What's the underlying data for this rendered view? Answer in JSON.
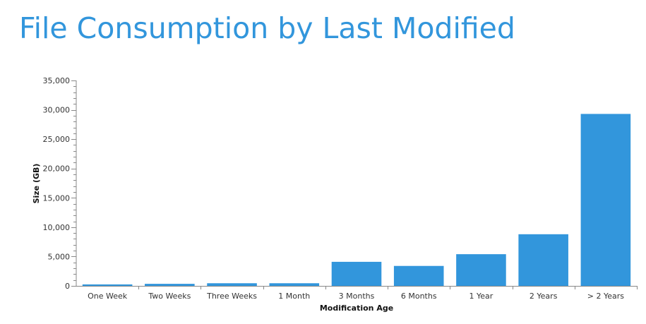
{
  "title": "File Consumption by Last Modified",
  "chart_data": {
    "type": "bar",
    "title": "File Consumption by Last Modified",
    "xlabel": "Modification Age",
    "ylabel": "Size (GB)",
    "categories": [
      "One Week",
      "Two Weeks",
      "Three Weeks",
      "1 Month",
      "3 Months",
      "6 Months",
      "1 Year",
      "2 Years",
      "> 2 Years"
    ],
    "values": [
      250,
      350,
      450,
      450,
      4100,
      3400,
      5400,
      8800,
      29300
    ],
    "ylim": [
      0,
      35000
    ],
    "yticks": [
      0,
      5000,
      10000,
      15000,
      20000,
      25000,
      30000,
      35000
    ],
    "ytick_labels": [
      "0",
      "5,000",
      "10,000",
      "15,000",
      "20,000",
      "25,000",
      "30,000",
      "35,000"
    ],
    "grid": false,
    "legend": "none",
    "bar_color": "#3296dc",
    "axis_color": "#888888"
  }
}
